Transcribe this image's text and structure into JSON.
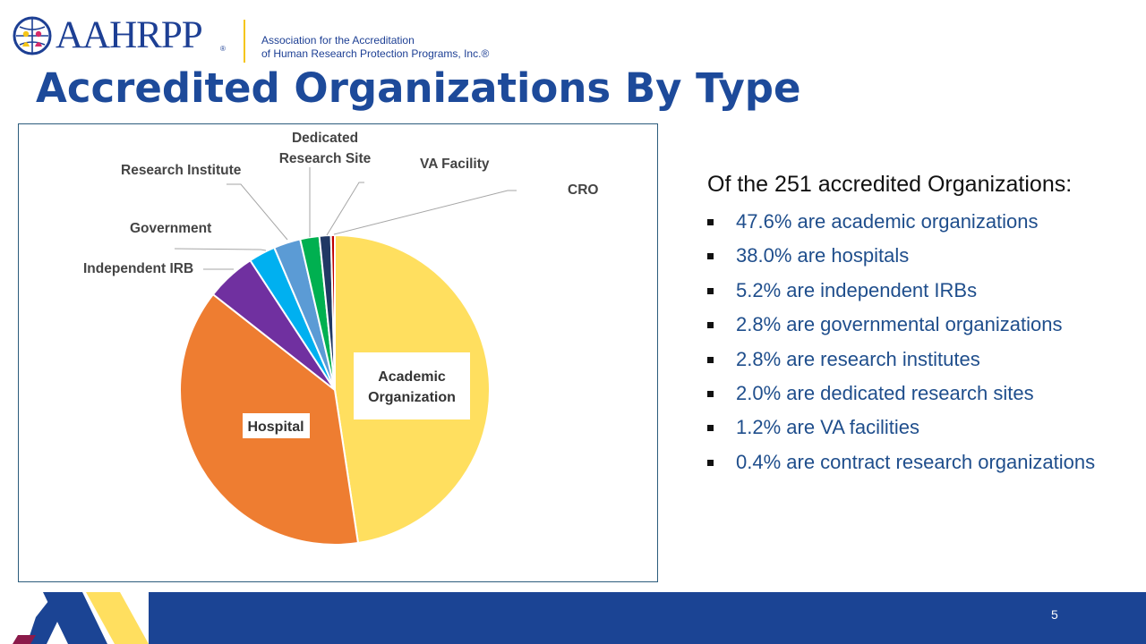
{
  "header": {
    "logo_text": "AAHRPP",
    "logo_reg": "®",
    "tagline_line1": "Association for the Accreditation",
    "tagline_line2": "of Human Research Protection Programs, Inc.®"
  },
  "title": "Accredited Organizations By Type",
  "chart_data": {
    "type": "pie",
    "slices": [
      {
        "label": "Academic Organization",
        "value": 47.6,
        "color": "#ffdf5f"
      },
      {
        "label": "Hospital",
        "value": 38.0,
        "color": "#ee7d31"
      },
      {
        "label": "Independent IRB",
        "value": 5.2,
        "color": "#7030a0"
      },
      {
        "label": "Government",
        "value": 2.8,
        "color": "#00b0f0"
      },
      {
        "label": "Research Institute",
        "value": 2.8,
        "color": "#5b9bd5"
      },
      {
        "label": "Dedicated Research Site",
        "value": 2.0,
        "color": "#00b050"
      },
      {
        "label": "VA Facility",
        "value": 1.2,
        "color": "#203864"
      },
      {
        "label": "CRO",
        "value": 0.4,
        "color": "#c00000"
      }
    ],
    "labels_display": {
      "academic_line1": "Academic",
      "academic_line2": "Organization",
      "hospital": "Hospital",
      "independent_irb": "Independent IRB",
      "government": "Government",
      "research_institute": "Research Institute",
      "dedicated_line1": "Dedicated",
      "dedicated_line2": "Research Site",
      "va_facility": "VA Facility",
      "cro": "CRO"
    }
  },
  "summary": {
    "heading": "Of the 251 accredited Organizations:",
    "items": [
      "47.6% are academic organizations",
      "38.0% are hospitals",
      "5.2% are independent IRBs",
      "2.8% are governmental organizations",
      "2.8% are research institutes",
      "2.0% are dedicated research sites",
      "1.2% are VA facilities",
      "0.4% are contract research organizations"
    ]
  },
  "footer": {
    "page_number": "5",
    "band_color": "#1b4494",
    "accent_yellow": "#ffdf5f",
    "accent_maroon": "#8b1a4a"
  }
}
